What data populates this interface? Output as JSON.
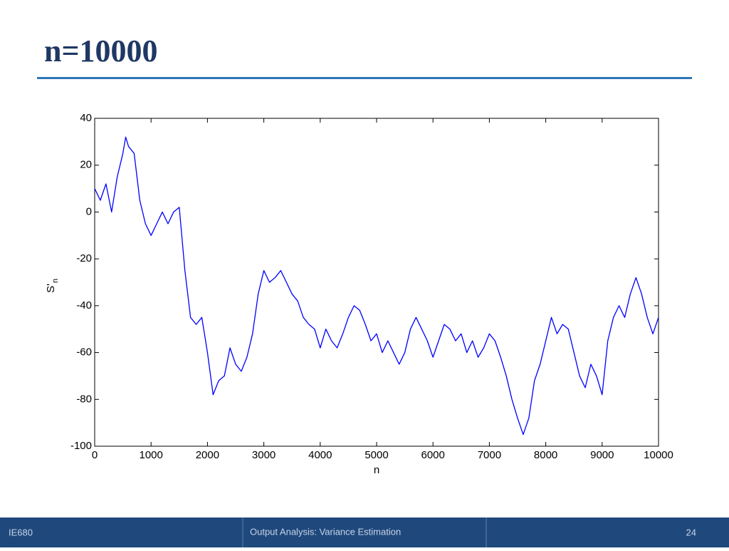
{
  "slide": {
    "title": "n=10000",
    "footer_left": "IE680",
    "footer_center": "Output Analysis: Variance  Estimation",
    "footer_right": "24"
  },
  "chart_data": {
    "type": "line",
    "x_label": "n",
    "y_label": "S'",
    "y_label_subscript": "n",
    "color": "#0000ff",
    "x": [
      0,
      100,
      200,
      300,
      400,
      500,
      550,
      600,
      700,
      800,
      900,
      1000,
      1100,
      1200,
      1300,
      1400,
      1500,
      1600,
      1700,
      1800,
      1900,
      2000,
      2100,
      2200,
      2300,
      2400,
      2500,
      2600,
      2700,
      2800,
      2900,
      3000,
      3100,
      3200,
      3300,
      3400,
      3500,
      3600,
      3700,
      3800,
      3900,
      4000,
      4100,
      4200,
      4300,
      4400,
      4500,
      4600,
      4700,
      4800,
      4900,
      5000,
      5100,
      5200,
      5300,
      5400,
      5500,
      5600,
      5700,
      5800,
      5900,
      6000,
      6100,
      6200,
      6300,
      6400,
      6500,
      6600,
      6700,
      6800,
      6900,
      7000,
      7100,
      7200,
      7300,
      7400,
      7500,
      7600,
      7700,
      7800,
      7900,
      8000,
      8100,
      8200,
      8300,
      8400,
      8500,
      8600,
      8700,
      8800,
      8900,
      9000,
      9100,
      9200,
      9300,
      9400,
      9500,
      9600,
      9700,
      9800,
      9900,
      10000
    ],
    "values": [
      10,
      5,
      12,
      0,
      15,
      25,
      32,
      28,
      25,
      5,
      -5,
      -10,
      -5,
      0,
      -5,
      0,
      2,
      -25,
      -45,
      -48,
      -45,
      -60,
      -78,
      -72,
      -70,
      -58,
      -65,
      -68,
      -62,
      -52,
      -35,
      -25,
      -30,
      -28,
      -25,
      -30,
      -35,
      -38,
      -45,
      -48,
      -50,
      -58,
      -50,
      -55,
      -58,
      -52,
      -45,
      -40,
      -42,
      -48,
      -55,
      -52,
      -60,
      -55,
      -60,
      -65,
      -60,
      -50,
      -45,
      -50,
      -55,
      -62,
      -55,
      -48,
      -50,
      -55,
      -52,
      -60,
      -55,
      -62,
      -58,
      -52,
      -55,
      -62,
      -70,
      -80,
      -88,
      -95,
      -88,
      -72,
      -65,
      -55,
      -45,
      -52,
      -48,
      -50,
      -60,
      -70,
      -75,
      -65,
      -70,
      -78,
      -55,
      -45,
      -40,
      -45,
      -35,
      -28,
      -35,
      -45,
      -52,
      -45
    ],
    "xlim": [
      0,
      10000
    ],
    "ylim": [
      -100,
      40
    ],
    "xticks": [
      0,
      1000,
      2000,
      3000,
      4000,
      5000,
      6000,
      7000,
      8000,
      9000,
      10000
    ],
    "yticks": [
      -100,
      -80,
      -60,
      -40,
      -20,
      0,
      20,
      40
    ]
  }
}
